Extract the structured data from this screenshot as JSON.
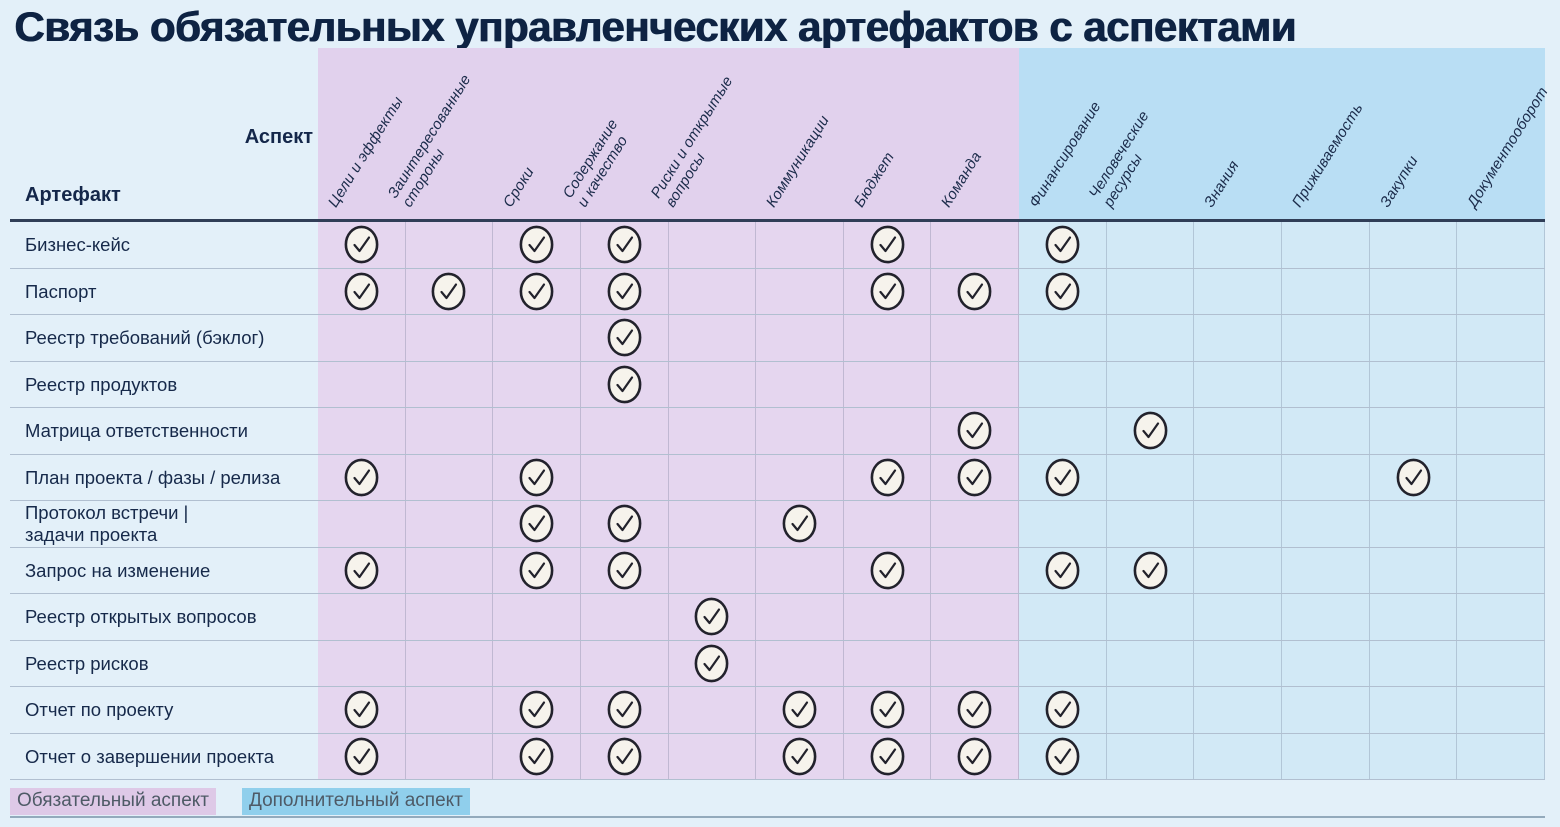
{
  "title": "Связь обязательных управленческих артефактов с аспектами",
  "corner": {
    "aspect_label": "Аспект",
    "artifact_label": "Артефакт"
  },
  "chart_data": {
    "type": "table",
    "title": "Связь обязательных управленческих артефактов с аспектами",
    "column_groups": [
      {
        "name": "Обязательный аспект",
        "columns_count": 8,
        "header_color": "#e1d1ed",
        "cell_color": "#e5d6ef"
      },
      {
        "name": "Дополнительный аспект",
        "columns_count": 6,
        "header_color": "#b9def4",
        "cell_color": "#d2e9f6"
      }
    ],
    "columns": [
      "Цели и эффекты",
      "Заинтересованные\nстороны",
      "Сроки",
      "Содержание\nи качество",
      "Риски и открытые\nвопросы",
      "Коммуникации",
      "Бюджет",
      "Команда",
      "Финансирование",
      "Человеческие\nресурсы",
      "Знания",
      "Приживаемость",
      "Закупки",
      "Документооборот"
    ],
    "rows": [
      {
        "artifact": "Бизнес-кейс",
        "checks": [
          1,
          3,
          4,
          7,
          9
        ]
      },
      {
        "artifact": "Паспорт",
        "checks": [
          1,
          2,
          3,
          4,
          7,
          8,
          9
        ]
      },
      {
        "artifact": "Реестр требований (бэклог)",
        "checks": [
          4
        ]
      },
      {
        "artifact": "Реестр продуктов",
        "checks": [
          4
        ]
      },
      {
        "artifact": "Матрица ответственности",
        "checks": [
          8,
          10
        ]
      },
      {
        "artifact": "План проекта / фазы / релиза",
        "checks": [
          1,
          3,
          7,
          8,
          9,
          13
        ]
      },
      {
        "artifact": "Протокол встречи |\nзадачи проекта",
        "checks": [
          3,
          4,
          6
        ]
      },
      {
        "artifact": "Запрос на изменение",
        "checks": [
          1,
          3,
          4,
          7,
          9,
          10
        ]
      },
      {
        "artifact": "Реестр открытых вопросов",
        "checks": [
          5
        ]
      },
      {
        "artifact": "Реестр рисков",
        "checks": [
          5
        ]
      },
      {
        "artifact": "Отчет по проекту",
        "checks": [
          1,
          3,
          4,
          6,
          7,
          8,
          9
        ]
      },
      {
        "artifact": "Отчет о завершении проекта",
        "checks": [
          1,
          3,
          4,
          6,
          7,
          8,
          9
        ]
      }
    ]
  },
  "legend": {
    "items": [
      {
        "label": "Обязательный аспект",
        "bg": "#dec9e7"
      },
      {
        "label": "Дополнительный аспект",
        "bg": "#90cfec"
      }
    ]
  },
  "colors": {
    "page_bg": "#e3f0f9",
    "title_text": "#0e2343",
    "check_fill": "#f6f3ec",
    "check_stroke": "#22222c"
  },
  "icons": {
    "check": "check-circle-icon"
  }
}
